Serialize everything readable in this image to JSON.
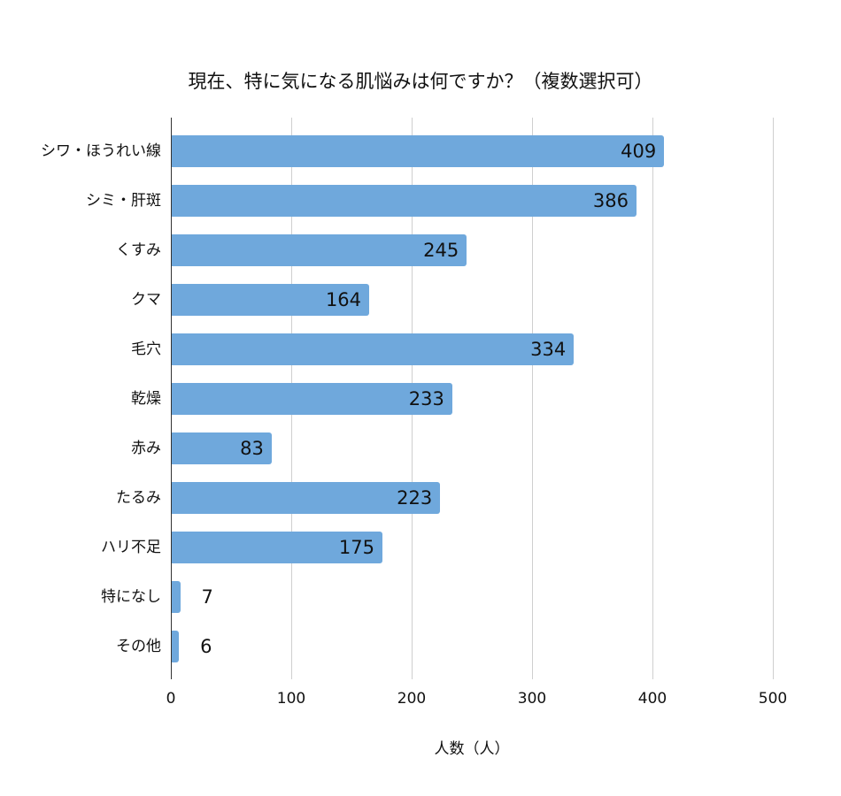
{
  "chart_data": {
    "type": "bar",
    "orientation": "horizontal",
    "title": "現在、特に気になる肌悩みは何ですか？（複数選択可）",
    "xlabel": "人数（人）",
    "ylabel": "",
    "categories": [
      "シワ・ほうれい線",
      "シミ・肝斑",
      "くすみ",
      "クマ",
      "毛穴",
      "乾燥",
      "赤み",
      "たるみ",
      "ハリ不足",
      "特になし",
      "その他"
    ],
    "values": [
      409,
      386,
      245,
      164,
      334,
      233,
      83,
      223,
      175,
      7,
      6
    ],
    "xlim": [
      0,
      500
    ],
    "xticks": [
      "0",
      "100",
      "200",
      "300",
      "400",
      "500"
    ],
    "grid": true,
    "legend": "none",
    "bar_color": "#6fa8dc"
  },
  "title": "現在、特に気になる肌悩みは何ですか？（複数選択可）",
  "xlabel": "人数（人）",
  "xticks": [
    "0",
    "100",
    "200",
    "300",
    "400",
    "500"
  ],
  "bars": [
    {
      "label": "シワ・ほうれい線",
      "value": "409"
    },
    {
      "label": "シミ・肝斑",
      "value": "386"
    },
    {
      "label": "くすみ",
      "value": "245"
    },
    {
      "label": "クマ",
      "value": "164"
    },
    {
      "label": "毛穴",
      "value": "334"
    },
    {
      "label": "乾燥",
      "value": "233"
    },
    {
      "label": "赤み",
      "value": "83"
    },
    {
      "label": "たるみ",
      "value": "223"
    },
    {
      "label": "ハリ不足",
      "value": "175"
    },
    {
      "label": "特になし",
      "value": "7"
    },
    {
      "label": "その他",
      "value": "6"
    }
  ]
}
